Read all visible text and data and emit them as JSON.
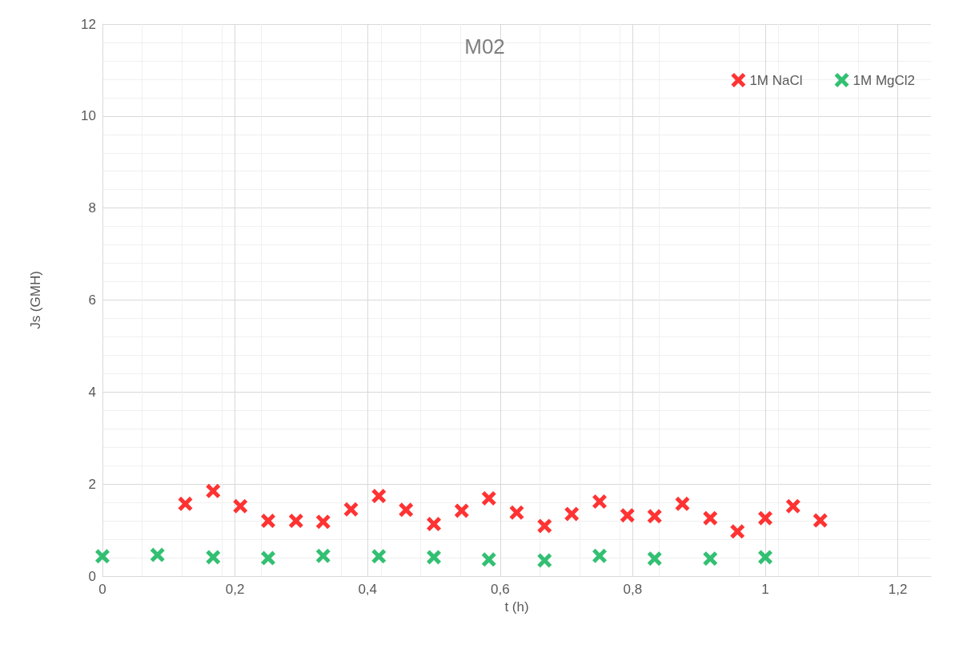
{
  "chart_data": {
    "type": "scatter",
    "title": "M02",
    "xlabel": "t (h)",
    "ylabel": "Js (GMH)",
    "xlim": [
      0,
      1.25
    ],
    "xticks": [
      0,
      {
        "value": 0.2,
        "label": "0,2"
      },
      {
        "value": 0.4,
        "label": "0,4"
      },
      {
        "value": 0.6,
        "label": "0,6"
      },
      {
        "value": 0.8,
        "label": "0,8"
      },
      1,
      {
        "value": 1.2,
        "label": "1,2"
      }
    ],
    "ylim": [
      0,
      12
    ],
    "yticks": [
      0,
      2,
      4,
      6,
      8,
      10,
      12
    ],
    "grid": true,
    "legend": "top right",
    "marker": "cross",
    "series": [
      {
        "name": "1M NaCl",
        "color": "#ff0000",
        "x": [
          0.125,
          0.167,
          0.208,
          0.25,
          0.292,
          0.333,
          0.375,
          0.417,
          0.458,
          0.5,
          0.542,
          0.583,
          0.625,
          0.667,
          0.708,
          0.75,
          0.792,
          0.833,
          0.875,
          0.917,
          0.958,
          1.0,
          1.042,
          1.083
        ],
        "values": [
          1.57,
          1.85,
          1.52,
          1.2,
          1.2,
          1.18,
          1.45,
          1.74,
          1.44,
          1.13,
          1.42,
          1.69,
          1.38,
          1.09,
          1.35,
          1.62,
          1.32,
          1.3,
          1.57,
          1.26,
          0.97,
          1.26,
          1.52,
          1.21
        ]
      },
      {
        "name": "1M MgCl2",
        "color": "#00b050",
        "x": [
          0,
          0.083,
          0.167,
          0.25,
          0.333,
          0.417,
          0.5,
          0.583,
          0.667,
          0.75,
          0.833,
          0.917,
          1.0
        ],
        "values": [
          0.43,
          0.46,
          0.41,
          0.39,
          0.44,
          0.43,
          0.41,
          0.36,
          0.34,
          0.44,
          0.38,
          0.38,
          0.41
        ]
      }
    ]
  }
}
